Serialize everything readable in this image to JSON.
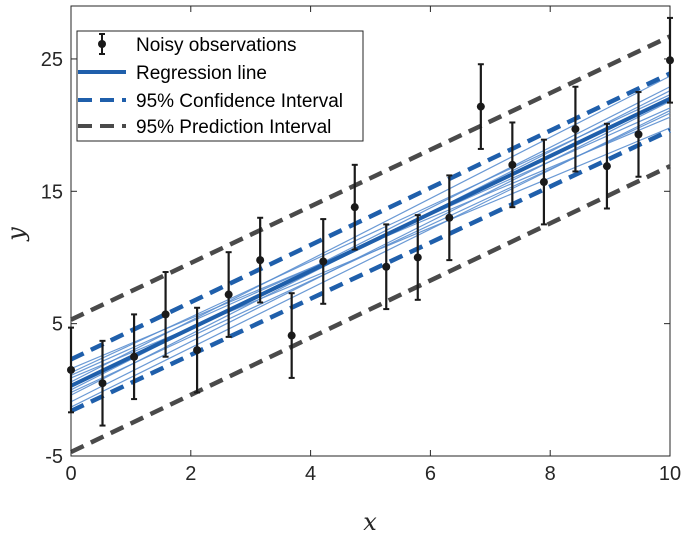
{
  "chart_data": {
    "type": "line",
    "title": "",
    "xlabel": "x",
    "ylabel": "y",
    "xlim": [
      0,
      10
    ],
    "ylim": [
      -5,
      29
    ],
    "x_ticks": [
      0,
      2,
      4,
      6,
      8,
      10
    ],
    "y_ticks": [
      -5,
      5,
      15,
      25
    ],
    "grid": false,
    "legend_position": "top-left",
    "colors": {
      "observations": "#1a1a1a",
      "regression": "#1f5fab",
      "bootstrap": "#5b8fd0",
      "confidence": "#1f5fab",
      "prediction": "#4a4a4a"
    },
    "series": [
      {
        "name": "Noisy observations",
        "kind": "errorbar",
        "x": [
          0,
          0.526,
          1.053,
          1.579,
          2.105,
          2.632,
          3.158,
          3.684,
          4.211,
          4.737,
          5.263,
          5.789,
          6.316,
          6.842,
          7.368,
          7.895,
          8.421,
          8.947,
          9.474,
          10
        ],
        "y": [
          1.5,
          0.5,
          2.5,
          5.7,
          3.0,
          7.2,
          9.8,
          4.1,
          9.7,
          13.8,
          9.3,
          10.0,
          13.0,
          21.4,
          17.0,
          15.7,
          19.7,
          16.9,
          19.3,
          24.9
        ],
        "err": [
          3.2,
          3.2,
          3.2,
          3.2,
          3.2,
          3.2,
          3.2,
          3.2,
          3.2,
          3.2,
          3.2,
          3.2,
          3.2,
          3.2,
          3.2,
          3.2,
          3.2,
          3.2,
          3.2,
          3.2
        ]
      },
      {
        "name": "Regression line",
        "kind": "line",
        "x": [
          0,
          10
        ],
        "y": [
          0.3,
          22.0
        ]
      },
      {
        "name": "95% Confidence Interval",
        "kind": "dashed",
        "x": [
          0,
          10
        ],
        "y": [
          2.3,
          23.9
        ]
      },
      {
        "name": "",
        "kind": "dashed-no-legend",
        "x": [
          0,
          10
        ],
        "y": [
          -1.6,
          19.6
        ]
      },
      {
        "name": "95% Prediction Interval",
        "kind": "dashed",
        "x": [
          0,
          10
        ],
        "y": [
          5.3,
          26.7
        ]
      },
      {
        "name": "",
        "kind": "dashed-no-legend",
        "x": [
          0,
          10
        ],
        "y": [
          -4.7,
          16.9
        ]
      }
    ],
    "bootstrap_lines": [
      {
        "x": [
          0,
          10
        ],
        "y": [
          0.6,
          23.7
        ]
      },
      {
        "x": [
          0,
          10
        ],
        "y": [
          1.1,
          21.3
        ]
      },
      {
        "x": [
          0,
          10
        ],
        "y": [
          -0.4,
          22.6
        ]
      },
      {
        "x": [
          0,
          10
        ],
        "y": [
          0.9,
          19.8
        ]
      },
      {
        "x": [
          0,
          10
        ],
        "y": [
          -0.9,
          21.8
        ]
      },
      {
        "x": [
          0,
          10
        ],
        "y": [
          1.6,
          20.6
        ]
      },
      {
        "x": [
          0,
          10
        ],
        "y": [
          0.0,
          22.9
        ]
      },
      {
        "x": [
          0,
          10
        ],
        "y": [
          -0.2,
          20.9
        ]
      },
      {
        "x": [
          0,
          10
        ],
        "y": [
          1.3,
          22.3
        ]
      },
      {
        "x": [
          0,
          10
        ],
        "y": [
          -1.3,
          21.1
        ]
      }
    ]
  }
}
